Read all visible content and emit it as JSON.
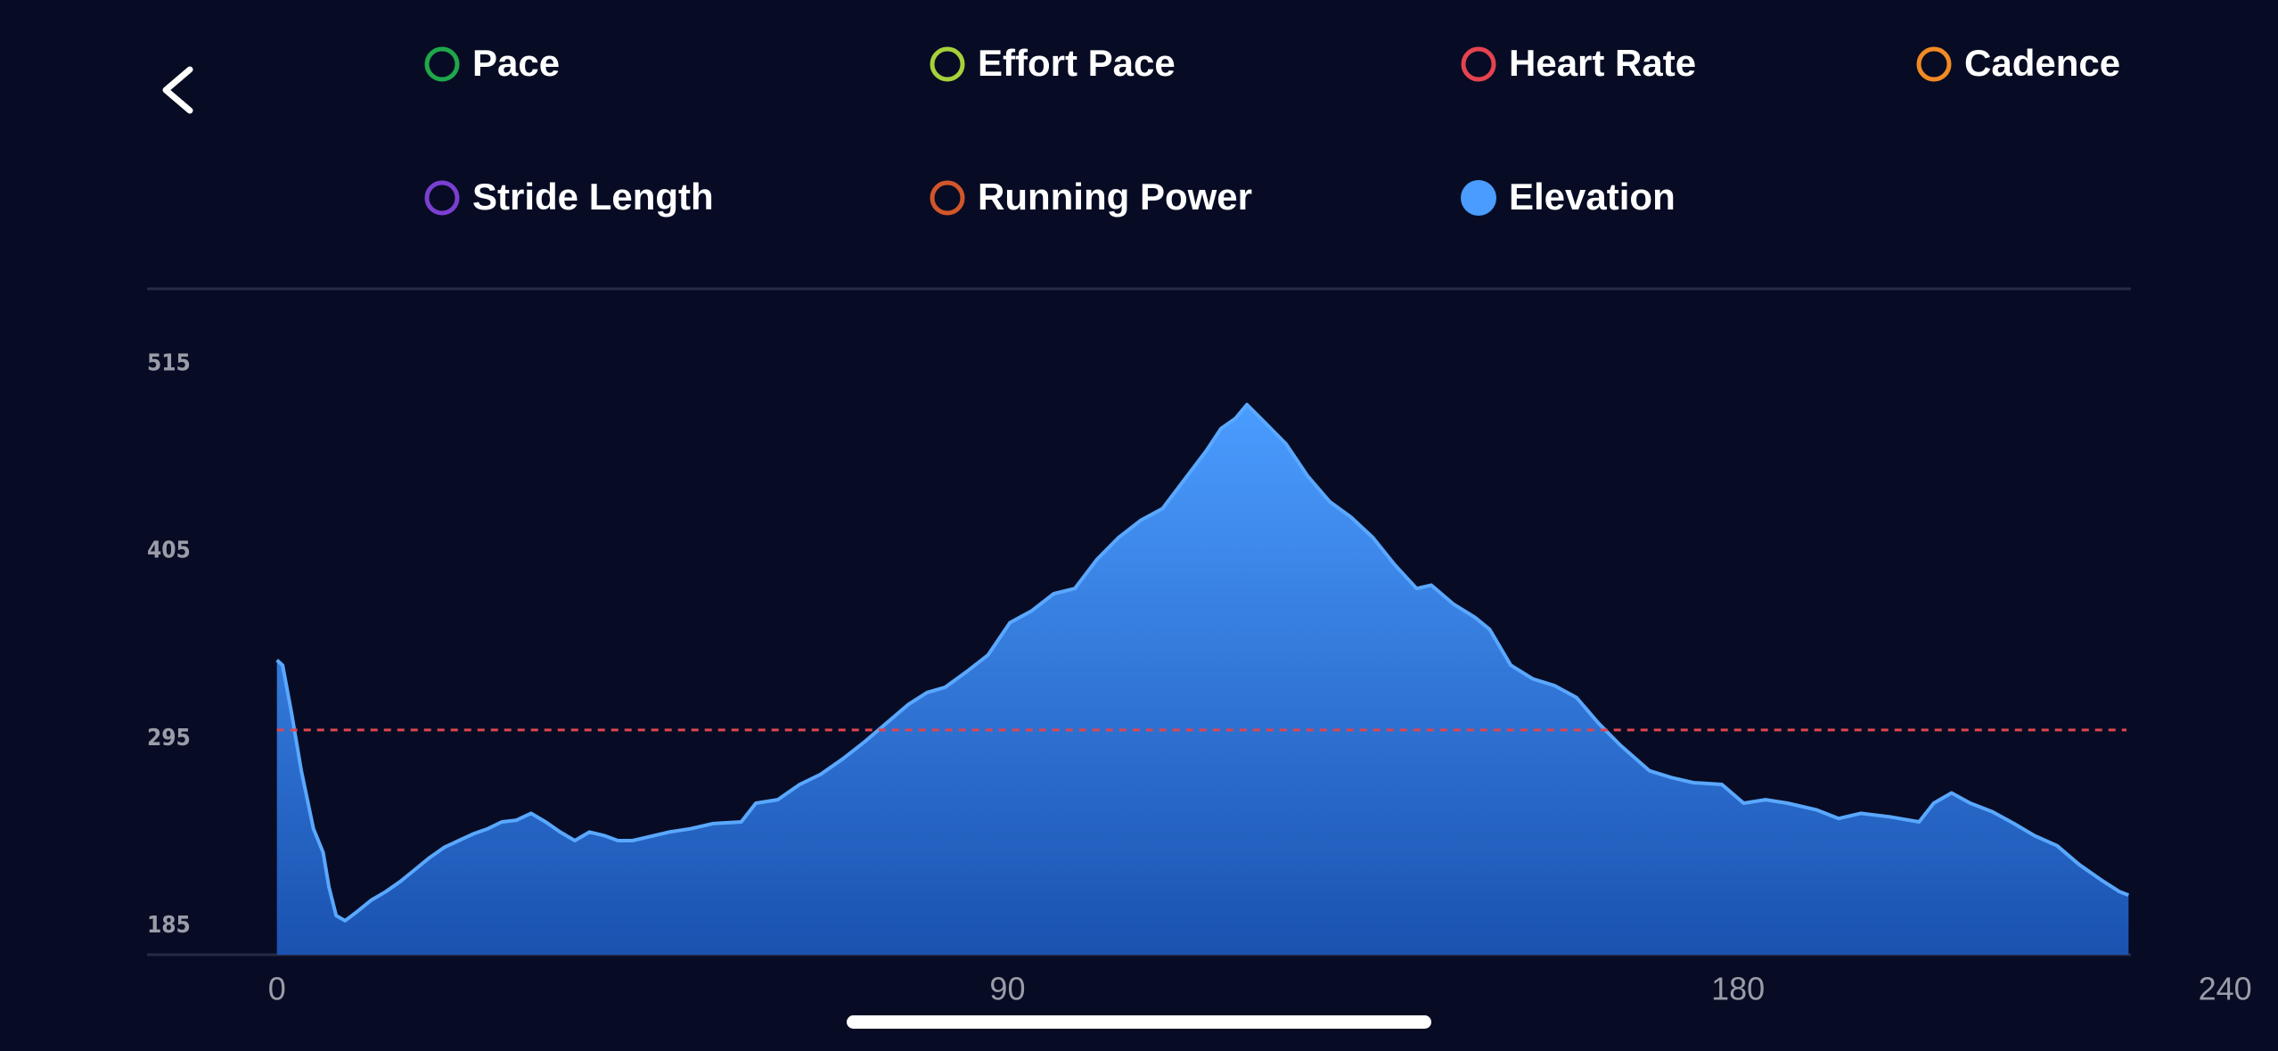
{
  "chart_data": {
    "type": "area",
    "legend": [
      {
        "name": "Pace",
        "color": "#1fa84a",
        "selected": false
      },
      {
        "name": "Effort Pace",
        "color": "#a6d13a",
        "selected": false
      },
      {
        "name": "Heart Rate",
        "color": "#e5434f",
        "selected": false
      },
      {
        "name": "Cadence",
        "color": "#f18a24",
        "selected": false
      },
      {
        "name": "Stride Length",
        "color": "#7b3fd1",
        "selected": false
      },
      {
        "name": "Running Power",
        "color": "#d2562a",
        "selected": false
      },
      {
        "name": "Elevation",
        "color": "#4a9cff",
        "selected": true
      }
    ],
    "series": [
      {
        "color": "#4a9cff",
        "x": [
          0,
          0.7,
          1.8,
          3.0,
          4.5,
          5.7,
          6.4,
          7.3,
          8.4,
          9.8,
          11.6,
          13.4,
          15.2,
          17,
          18.8,
          20.6,
          22.4,
          24.2,
          26,
          27.7,
          29.5,
          31.3,
          33.1,
          34.9,
          36.7,
          38.5,
          40.3,
          42,
          43.8,
          45.6,
          48.3,
          51,
          53.7,
          57.2,
          59,
          61.7,
          64.4,
          67,
          69.7,
          72.4,
          75.1,
          77.8,
          80.1,
          82.3,
          84.9,
          87.6,
          90.3,
          93,
          95.7,
          98.3,
          101,
          103.7,
          106.4,
          109.1,
          111.8,
          114.5,
          116.3,
          118.1,
          119.5,
          121.6,
          124.3,
          127,
          129.7,
          132.3,
          135,
          137.7,
          140.4,
          142.2,
          144.9,
          147.6,
          149.4,
          152,
          154.7,
          157.4,
          160.1,
          162.8,
          165.5,
          169.1,
          171.8,
          174.5,
          178,
          180.7,
          183.4,
          186.1,
          189.7,
          192.4,
          195.1,
          198.7,
          202.3,
          204.1,
          206.3,
          208.6,
          211.3,
          214,
          216.5,
          219.3,
          222,
          224.7,
          227,
          228.1
        ],
        "values": [
          341,
          338,
          310,
          276,
          242,
          228,
          208,
          191,
          188,
          193,
          200,
          205,
          211,
          218,
          225,
          231,
          235,
          239,
          242,
          246,
          247,
          251,
          246,
          240,
          235,
          240,
          238,
          235,
          235,
          237,
          240,
          242,
          245,
          246,
          257,
          259,
          268,
          274,
          283,
          293,
          304,
          315,
          322,
          325,
          334,
          344,
          363,
          370,
          380,
          383,
          400,
          413,
          423,
          430,
          447,
          464,
          477,
          483,
          491,
          481,
          468,
          449,
          434,
          425,
          413,
          397,
          383,
          385,
          374,
          366,
          359,
          338,
          330,
          326,
          319,
          304,
          291,
          276,
          272,
          269,
          268,
          257,
          259,
          257,
          253,
          248,
          251,
          249,
          246,
          257,
          263,
          257,
          252,
          245,
          238,
          232,
          221,
          212,
          205,
          203
        ]
      }
    ],
    "reference_line": {
      "value": 300,
      "color": "#e0454f"
    },
    "xlim": [
      -16,
      228.4
    ],
    "xticks": [
      0,
      90,
      180,
      240
    ],
    "ylim": [
      168,
      559
    ],
    "yticks": [
      185,
      295,
      405,
      515
    ]
  }
}
